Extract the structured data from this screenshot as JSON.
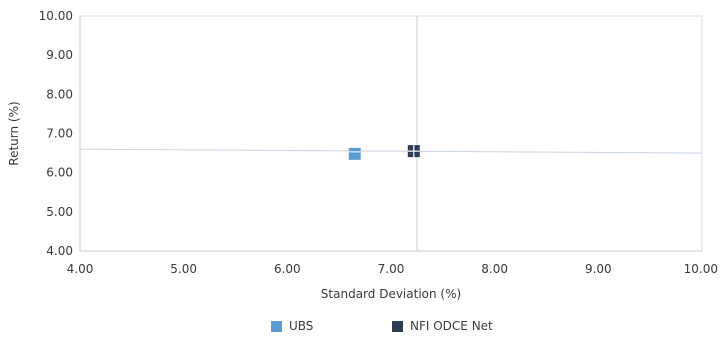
{
  "chart_data": {
    "type": "scatter",
    "xlabel": "Standard Deviation (%)",
    "ylabel": "Return (%)",
    "xlim": [
      4.0,
      10.0
    ],
    "ylim": [
      4.0,
      10.0
    ],
    "x_ticks": [
      "4.00",
      "5.00",
      "6.00",
      "7.00",
      "8.00",
      "9.00",
      "10.00"
    ],
    "y_ticks": [
      "4.00",
      "5.00",
      "6.00",
      "7.00",
      "8.00",
      "9.00",
      "10.00"
    ],
    "grid": false,
    "reference_lines": {
      "x": 7.25,
      "y_at_xmin": 6.6,
      "y_at_xmax": 6.5
    },
    "series": [
      {
        "name": "UBS",
        "color": "#5b9bd0",
        "points": [
          {
            "x": 6.65,
            "y": 6.48
          }
        ]
      },
      {
        "name": "NFI ODCE Net",
        "color": "#2e3b55",
        "points": [
          {
            "x": 7.22,
            "y": 6.55
          }
        ]
      }
    ],
    "legend_position": "bottom-center"
  }
}
